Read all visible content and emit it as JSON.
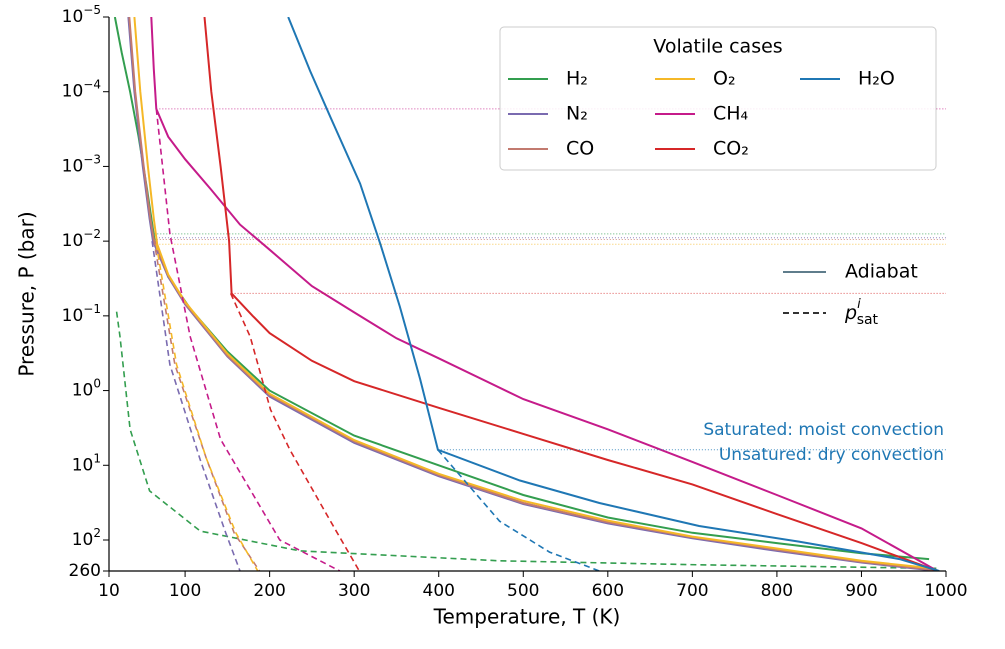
{
  "chart_data": {
    "type": "line",
    "x_label": "Temperature, T (K)",
    "y_label": "Pressure, P (bar)",
    "xlim": [
      10,
      1000
    ],
    "xticks": [
      10,
      100,
      200,
      300,
      400,
      500,
      600,
      700,
      800,
      900,
      1000
    ],
    "ylim": [
      1e-05,
      260
    ],
    "y_scale": "log",
    "y_inverted": true,
    "yticks": [
      {
        "value": 1e-05,
        "label": "10",
        "exponent": "−5"
      },
      {
        "value": 0.0001,
        "label": "10",
        "exponent": "−4"
      },
      {
        "value": 0.001,
        "label": "10",
        "exponent": "−3"
      },
      {
        "value": 0.01,
        "label": "10",
        "exponent": "−2"
      },
      {
        "value": 0.1,
        "label": "10",
        "exponent": "−1"
      },
      {
        "value": 1,
        "label": "10",
        "exponent": "0"
      },
      {
        "value": 10,
        "label": "10",
        "exponent": "1"
      },
      {
        "value": 100,
        "label": "10",
        "exponent": "2"
      },
      260
    ],
    "legend_title": "Volatile cases",
    "style_legend": [
      {
        "label": "Adiabat"
      },
      {
        "label": "p",
        "sub": "sat",
        "sup": "i"
      }
    ],
    "annotations": [
      {
        "text": "Saturated: moist convection"
      },
      {
        "text": "Unsatured: dry convection"
      }
    ],
    "series": [
      {
        "name": "H₂",
        "color": "#339e4f",
        "x": [
          17,
          25,
          35,
          45,
          55,
          64,
          80,
          106,
          150,
          200,
          300,
          400,
          500,
          600,
          700,
          800,
          900,
          980
        ],
        "values": [
          1e-05,
          3e-05,
          0.0001,
          0.0004,
          0.002,
          0.01,
          0.03,
          0.08,
          0.3,
          1,
          4,
          10,
          25,
          50,
          80,
          110,
          150,
          180
        ],
        "sat_x": [
          19,
          23,
          35,
          58,
          118,
          236,
          472,
          708,
          992
        ],
        "sat_values": [
          0.088,
          0.19,
          3.3,
          22,
          76,
          140,
          190,
          215,
          240
        ],
        "transition": [
          60,
          0.008
        ]
      },
      {
        "name": "N₂",
        "color": "#7a6bb0",
        "x": [
          33,
          40,
          50,
          58,
          62,
          80,
          100,
          150,
          200,
          300,
          400,
          500,
          600,
          700,
          800,
          900,
          990
        ],
        "values": [
          1e-05,
          0.0001,
          0.001,
          0.005,
          0.01,
          0.03,
          0.07,
          0.35,
          1.2,
          5,
          14,
          33,
          60,
          95,
          140,
          200,
          260
        ],
        "sat_x": [
          61,
          82,
          118,
          148,
          165
        ],
        "sat_values": [
          0.01,
          0.45,
          8.5,
          80,
          260
        ],
        "transition": [
          62,
          0.009
        ]
      },
      {
        "name": "CO",
        "color": "#c27a6f",
        "x": [
          34,
          41,
          51,
          59,
          63,
          80,
          100,
          150,
          200,
          300,
          400,
          500,
          600,
          700,
          800,
          900,
          990
        ],
        "values": [
          1e-05,
          0.0001,
          0.001,
          0.005,
          0.0095,
          0.029,
          0.068,
          0.34,
          1.15,
          4.8,
          13.5,
          32,
          58,
          92,
          135,
          195,
          255
        ],
        "sat_x": [
          63,
          88,
          125,
          158,
          188
        ],
        "sat_values": [
          0.0095,
          0.45,
          8,
          80,
          260
        ],
        "transition": [
          63,
          0.0095
        ]
      },
      {
        "name": "O₂",
        "color": "#f5b827",
        "x": [
          40,
          47,
          56,
          63,
          67,
          80,
          100,
          150,
          200,
          300,
          400,
          500,
          600,
          700,
          800,
          900,
          985
        ],
        "values": [
          1e-05,
          0.0001,
          0.001,
          0.005,
          0.011,
          0.028,
          0.065,
          0.32,
          1.1,
          4.6,
          13,
          30,
          55,
          90,
          130,
          190,
          240
        ],
        "sat_x": [
          66,
          90,
          125,
          160,
          186
        ],
        "sat_values": [
          0.011,
          0.45,
          8,
          80,
          260
        ],
        "transition": [
          66,
          0.011
        ]
      },
      {
        "name": "CH₄",
        "color": "#c51b8a",
        "x": [
          60,
          63,
          66,
          80,
          100,
          130,
          165,
          200,
          250,
          300,
          350,
          400,
          500,
          600,
          700,
          800,
          900,
          990
        ],
        "values": [
          1e-05,
          5e-05,
          0.00017,
          0.0004,
          0.0008,
          0.002,
          0.006,
          0.013,
          0.04,
          0.09,
          0.2,
          0.37,
          1.3,
          3.3,
          9,
          25,
          70,
          260
        ],
        "sat_x": [
          66,
          82,
          106,
          142,
          212,
          283
        ],
        "sat_values": [
          0.00017,
          0.008,
          0.19,
          4.5,
          100,
          260
        ],
        "transition": [
          66,
          0.00017
        ]
      },
      {
        "name": "CO₂",
        "color": "#d62728",
        "x": [
          123,
          131,
          142,
          152,
          155,
          180,
          200,
          250,
          300,
          400,
          500,
          600,
          700,
          800,
          900,
          990
        ],
        "values": [
          1e-05,
          0.0001,
          0.001,
          0.01,
          0.05,
          0.1,
          0.17,
          0.4,
          0.75,
          1.7,
          3.8,
          8.5,
          18,
          45,
          110,
          260
        ],
        "sat_x": [
          154,
          177,
          201,
          224,
          272,
          306
        ],
        "sat_values": [
          0.05,
          0.19,
          1.8,
          6.2,
          56,
          260
        ],
        "transition": [
          155,
          0.05
        ]
      },
      {
        "name": "H₂O",
        "color": "#1f77b4",
        "x": [
          222,
          248,
          272,
          307,
          331,
          354,
          378,
          399,
          496,
          590,
          708,
          826,
          945,
          992
        ],
        "values": [
          1e-05,
          5.3e-05,
          0.00022,
          0.0017,
          0.011,
          0.075,
          0.7,
          6.2,
          16,
          32,
          65,
          105,
          180,
          260
        ],
        "sat_x": [
          399,
          472,
          531,
          590
        ],
        "sat_values": [
          6.2,
          56,
          145,
          260
        ],
        "transition": [
          399,
          6.2
        ]
      }
    ]
  }
}
